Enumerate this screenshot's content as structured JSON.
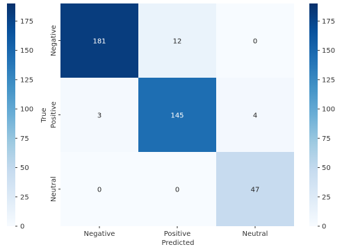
{
  "chart_data": {
    "type": "heatmap",
    "title": "",
    "xlabel": "Predicted",
    "ylabel": "True",
    "x_categories": [
      "Negative",
      "Positive",
      "Neutral"
    ],
    "y_categories": [
      "Negative",
      "Positive",
      "Neutral"
    ],
    "values": [
      [
        181,
        12,
        0
      ],
      [
        3,
        145,
        4
      ],
      [
        0,
        0,
        47
      ]
    ],
    "colormap": "Blues",
    "vmin": 0,
    "vmax": 190,
    "colorbar_ticks": [
      0,
      25,
      50,
      75,
      100,
      125,
      150,
      175
    ],
    "colorbars": [
      "left",
      "right"
    ],
    "annotations_shown": true
  },
  "colors": {
    "scale_light": "#f7fbff",
    "scale_dark": "#08306b",
    "text_on_light": "#262626",
    "text_on_dark": "#ffffff",
    "tick_text": "#333333"
  }
}
